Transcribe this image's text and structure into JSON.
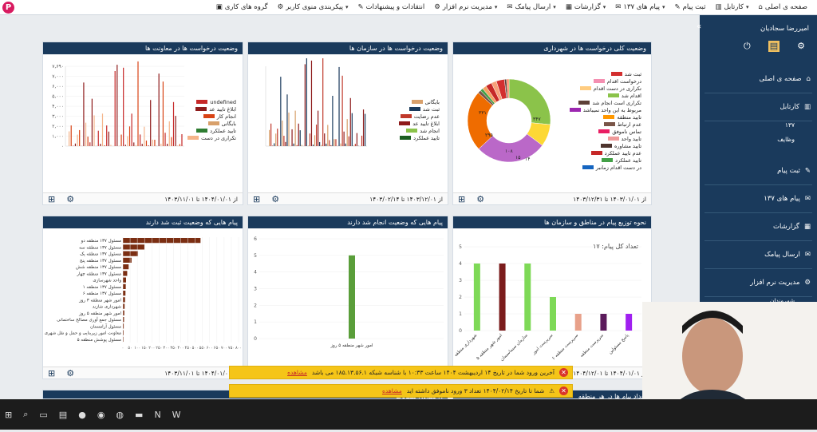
{
  "nav": {
    "items": [
      {
        "label": "صفحه ی اصلی",
        "icon": "home-icon",
        "dd": false
      },
      {
        "label": "کارتابل",
        "icon": "inbox-icon",
        "dd": true
      },
      {
        "label": "ثبت پیام",
        "icon": "edit-icon",
        "dd": false
      },
      {
        "label": "پیام های ۱۳۷",
        "icon": "message-icon",
        "dd": true
      },
      {
        "label": "گزارشات",
        "icon": "report-icon",
        "dd": true
      },
      {
        "label": "ارسال پیامک",
        "icon": "sms-icon",
        "dd": true
      },
      {
        "label": "مدیریت نرم افزار",
        "icon": "gear-icon",
        "dd": true
      },
      {
        "label": "انتقادات و پیشنهادات",
        "icon": "comment-icon",
        "dd": false
      },
      {
        "label": "پیکربندی منوی کاربر",
        "icon": "settings-icon",
        "dd": true
      },
      {
        "label": "گروه های کاری",
        "icon": "group-icon",
        "dd": false
      }
    ]
  },
  "sidebar": {
    "user": "امیررضا سجادیان",
    "items": [
      {
        "label": "صفحه ی اصلی"
      },
      {
        "label": "کارتابل"
      },
      {
        "label": "۱۳۷"
      },
      {
        "label": "وظایف"
      },
      {
        "label": "ثبت پیام"
      },
      {
        "label": "پیام های ۱۳۷"
      },
      {
        "label": "گزارشات"
      },
      {
        "label": "ارسال پیامک"
      },
      {
        "label": "مدیریت نرم افزار"
      },
      {
        "label": "شهروندان"
      },
      {
        "label": "کاربران"
      },
      {
        "label": "نقش ها"
      },
      {
        "label": "موضوعات"
      },
      {
        "label": "تعریف منوها"
      },
      {
        "label": "گرد"
      },
      {
        "label": "تن"
      }
    ]
  },
  "cards": {
    "c1": {
      "title": "وضعیت کلی درخواست ها در شهرداری",
      "date": "از ۱۴۰۳/۰۱/۰۱ تا ۱۴۰۳/۱۲/۳۱"
    },
    "c2": {
      "title": "وضعیت درخواست ها در سازمان ها",
      "date": "از ۱۴۰۳/۱۲/۰۱ تا ۱۴۰۳/۰۲/۱۴"
    },
    "c3": {
      "title": "وضعیت درخواست ها در معاونت ها",
      "date": "از ۱۴۰۴/۰۱/۰۱ تا ۱۴۰۳/۱۱/۰۱"
    },
    "c4": {
      "title": "نحوه توزیع پیام در مناطق و سازمان ها",
      "date": "از ۱۴۰۴/۰۱/۰۱ تا ۱۴۰۴/۱۲/۰۱"
    },
    "c5": {
      "title": "پیام هایی که وضعیت انجام شد دارند",
      "date": ""
    },
    "c6": {
      "title": "پیام هایی که وضعیت ثبت شد دارند",
      "date": "از ۱۴۰۴/۰۱/۰۱ تا ۱۴۰۳/۱۱/۰۱"
    },
    "c7": {
      "title": "تعداد پیام ها در هر منطقه"
    },
    "c8": {
      "title": "ل تعدادی شکایات"
    }
  },
  "legend1": [
    "ثبت شد",
    "درخواست اقدام",
    "تکراری در دست اقدام",
    "اقدام شد",
    "تکراری است انجام شد",
    "مربوط به این واحد نمیباشد",
    "تایید منطقه",
    "عدم ارتباط",
    "تماس ناموفق",
    "تایید واحد",
    "تایید مشاوره",
    "عدم تایید عملکرد",
    "تایید عملکرد",
    "در دست اقدام زمانبر"
  ],
  "legend1_colors": [
    "#d32f2f",
    "#f48fb1",
    "#ffcc80",
    "#8bc34a",
    "#5d4037",
    "#9c27b0",
    "#ff9800",
    "#795548",
    "#e91e63",
    "#ef9a9a",
    "#4e342e",
    "#c62828",
    "#43a047",
    "#1565c0"
  ],
  "legend2": [
    "بایگانی",
    "ثبت شد",
    "عدم رضایت",
    "ابلاغ تایید عد",
    "انجام شد",
    "تایید عملکرد"
  ],
  "legend2_colors": [
    "#d8a06b",
    "#1a3a5c",
    "#c0392b",
    "#8e1b1b",
    "#8bc34a",
    "#1b5e20"
  ],
  "legend3": [
    "undefined",
    "ابلاغ تایید عد",
    "انجام کار",
    "بایگانی",
    "تایید عملکرد",
    "تکراری در دست"
  ],
  "legend3_colors": [
    "#c62828",
    "#8e1b1b",
    "#d84315",
    "#d8a06b",
    "#2e7d32",
    "#f5b48a"
  ],
  "donut_labels": [
    "۳۳۱",
    "۱۰۸",
    "۳۴۷",
    "۲۹۵",
    "۱۵",
    "۱۴"
  ],
  "chart3_yticks": [
    "۷,۶۹۰",
    "۷,۰۰۰",
    "۶,۰۰۰",
    "۵,۰۰۰",
    "۴,۰۰۰",
    "۳,۰۰۰",
    "۲,۰۰۰",
    "۱,۰۰۰",
    "۰"
  ],
  "chart4": {
    "total_label": "تعداد کل پیام: ۱۷",
    "categories": [
      "شهرداری منطقه",
      "امور شهر منطقه ۵",
      "سازمان سیماسیمان",
      "سرپرست امور",
      "سرپرست منطقه ۶",
      "سرپرست منطقه",
      "پاسخ مسئولین"
    ],
    "values": [
      4,
      4,
      4,
      2,
      1,
      1,
      1
    ],
    "ylim": [
      0,
      5
    ],
    "colors": [
      "#7ed957",
      "#7b1c1c",
      "#7ed957",
      "#7ed957",
      "#e8a18a",
      "#5b1a5b",
      "#a020f0"
    ]
  },
  "chart5": {
    "category": "امور شهر منطقه ۵ روز",
    "value": 5,
    "ylim": [
      0,
      6
    ]
  },
  "chart6": {
    "categories": [
      "مسئول ۱۳۷ منطقه دو",
      "مسئول ۱۳۷ منطقه سه",
      "مسئول ۱۳۷ منطقه یک",
      "مسئول ۱۳۷ منطقه پنج",
      "مسئول ۱۳۷ منطقه شش",
      "مسئول ۱۳۷ منطقه چهار",
      "واحد شهرسازی",
      "مسئول ۱۳۷ منطقه ۱",
      "مسئول ۱۳۷ منطقه ۶",
      "امور شهر منطقه ۳ روز",
      "شهرداری شازند",
      "امور شهر منطقه ۵ روز",
      "مسئول جمع آوری مصالح ساختمانی",
      "مسئول آرامستان",
      "معاونت امور زیربنایی و حمل و نقل شهری",
      "مسئول پوشش منطقه ۵"
    ],
    "values": [
      537,
      150,
      105,
      60,
      40,
      30,
      22,
      20,
      18,
      15,
      12,
      10,
      8,
      6,
      5,
      4
    ],
    "xlim": [
      0,
      800
    ],
    "xticks": [
      "۰",
      "۵۰",
      "۱۰۰",
      "۱۵۰",
      "۲۰۰",
      "۲۵۰",
      "۳۰۰",
      "۳۵۰",
      "۴۰۰",
      "۴۵۰",
      "۵۰۰",
      "۵۵۰",
      "۶۰۰",
      "۶۵۰",
      "۷۰۰",
      "۷۵۰",
      "۸۰۰"
    ]
  },
  "alerts": [
    {
      "text": "آخرین ورود شما در تاریخ ۱۴ اردیبهشت ۱۴۰۴ ساعت ۱۰:۳۳ با شناسه شبکه ۱۸۵.۱۳.۵۶.۱ می باشد",
      "link": "مشاهده"
    },
    {
      "text": "شما تا تاریخ ۱۴۰۴/۰۲/۱۴ تعداد ۳ ورود ناموفق داشته اید",
      "link": "مشاهده"
    }
  ]
}
